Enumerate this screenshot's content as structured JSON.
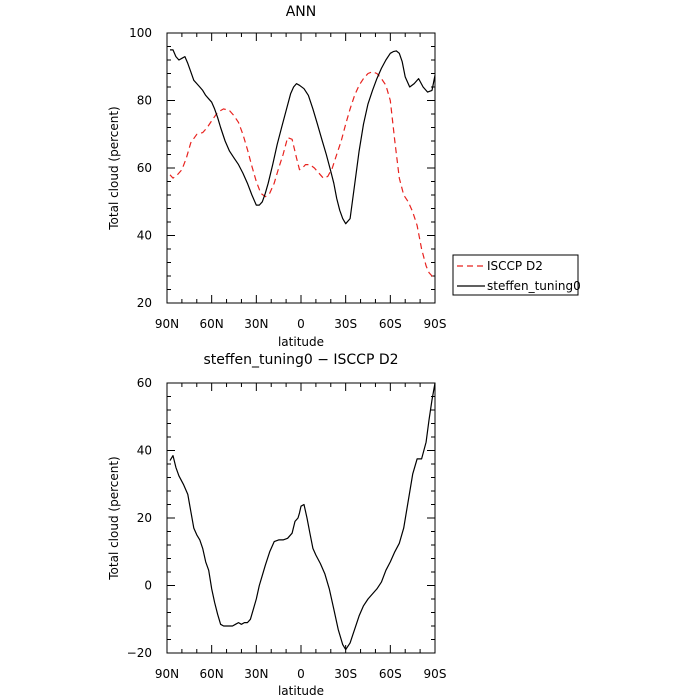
{
  "chart_data": [
    {
      "type": "line",
      "title": "ANN",
      "xlabel": "latitude",
      "ylabel": "Total cloud (percent)",
      "xlim": [
        -90,
        90
      ],
      "ylim": [
        20,
        100
      ],
      "x_ticks": [
        {
          "value": -90,
          "label": "90N"
        },
        {
          "value": -60,
          "label": "60N"
        },
        {
          "value": -30,
          "label": "30N"
        },
        {
          "value": 0,
          "label": "0"
        },
        {
          "value": 30,
          "label": "30S"
        },
        {
          "value": 60,
          "label": "60S"
        },
        {
          "value": 90,
          "label": "90S"
        }
      ],
      "y_ticks": [
        20,
        40,
        60,
        80,
        100
      ],
      "legend_position": "right",
      "series": [
        {
          "name": "ISCCP D2",
          "color": "#e8231f",
          "dash": "dashed",
          "x": [
            -88,
            -86,
            -83,
            -80,
            -77,
            -74,
            -70,
            -66,
            -63,
            -60,
            -56,
            -52,
            -48,
            -45,
            -42,
            -39,
            -36,
            -33,
            -30,
            -27,
            -24,
            -21,
            -18,
            -15,
            -12,
            -9,
            -6,
            -3,
            -1,
            1,
            3,
            6,
            9,
            12,
            15,
            18,
            21,
            24,
            27,
            30,
            33,
            36,
            39,
            42,
            45,
            48,
            51,
            54,
            57,
            60,
            63,
            66,
            69,
            72,
            75,
            78,
            81,
            84,
            86,
            88,
            90
          ],
          "y": [
            58.0,
            57.0,
            58.0,
            59.5,
            63.0,
            67.5,
            70.0,
            70.5,
            72.0,
            74.0,
            76.5,
            77.5,
            77.0,
            75.5,
            73.5,
            70.0,
            65.5,
            60.5,
            56.0,
            52.5,
            51.5,
            52.5,
            55.5,
            60.0,
            64.0,
            69.0,
            68.5,
            63.0,
            59.5,
            60.0,
            61.0,
            61.0,
            60.0,
            58.5,
            57.0,
            57.5,
            60.0,
            64.0,
            68.0,
            73.0,
            77.5,
            81.5,
            84.5,
            86.5,
            88.0,
            88.5,
            88.0,
            86.5,
            84.5,
            80.0,
            68.0,
            57.0,
            52.0,
            50.0,
            47.0,
            43.0,
            36.0,
            31.0,
            29.0,
            28.0,
            27.0
          ]
        },
        {
          "name": "steffen_tuning0",
          "color": "#000000",
          "dash": "solid",
          "x": [
            -88,
            -86,
            -84,
            -82,
            -80,
            -78,
            -76,
            -74,
            -72,
            -70,
            -68,
            -66,
            -64,
            -62,
            -60,
            -58,
            -56,
            -54,
            -51,
            -48,
            -45,
            -42,
            -39,
            -36,
            -33,
            -30,
            -28,
            -26,
            -24,
            -22,
            -19,
            -16,
            -13,
            -10,
            -7,
            -5,
            -3,
            -1,
            2,
            5,
            8,
            11,
            14,
            17,
            20,
            22,
            24,
            26,
            28,
            30,
            33,
            36,
            39,
            42,
            45,
            48,
            51,
            54,
            57,
            60,
            62,
            64,
            66,
            68,
            70,
            73,
            76,
            79,
            82,
            85,
            88,
            90
          ],
          "y": [
            95.0,
            95.0,
            93.0,
            92.0,
            92.5,
            93.0,
            91.0,
            88.5,
            86.0,
            85.0,
            84.0,
            83.0,
            81.5,
            80.5,
            79.5,
            77.5,
            75.0,
            72.0,
            68.0,
            65.0,
            63.0,
            61.0,
            58.5,
            55.5,
            52.0,
            49.0,
            49.0,
            50.0,
            52.5,
            55.5,
            61.0,
            67.0,
            72.0,
            77.0,
            82.0,
            84.0,
            85.0,
            84.5,
            83.5,
            81.5,
            77.5,
            73.0,
            68.5,
            64.0,
            59.0,
            55.5,
            51.0,
            47.5,
            45.0,
            43.5,
            45.0,
            55.0,
            65.0,
            73.0,
            79.0,
            83.0,
            86.5,
            89.5,
            92.0,
            94.0,
            94.5,
            94.7,
            94.0,
            91.5,
            87.0,
            84.0,
            85.0,
            86.5,
            84.0,
            82.5,
            83.0,
            87.5
          ]
        }
      ]
    },
    {
      "type": "line",
      "title": "steffen_tuning0 − ISCCP D2",
      "xlabel": "latitude",
      "ylabel": "Total cloud (percent)",
      "xlim": [
        -90,
        90
      ],
      "ylim": [
        -20,
        60
      ],
      "x_ticks": [
        {
          "value": -90,
          "label": "90N"
        },
        {
          "value": -60,
          "label": "60N"
        },
        {
          "value": -30,
          "label": "30N"
        },
        {
          "value": 0,
          "label": "0"
        },
        {
          "value": 30,
          "label": "30S"
        },
        {
          "value": 60,
          "label": "60S"
        },
        {
          "value": 90,
          "label": "90S"
        }
      ],
      "y_ticks": [
        -20,
        0,
        20,
        40,
        60
      ],
      "series": [
        {
          "color": "#000000",
          "dash": "solid",
          "x": [
            -88,
            -86,
            -84,
            -82,
            -79,
            -76,
            -74,
            -72,
            -70,
            -68,
            -66,
            -64,
            -62,
            -60,
            -58,
            -56,
            -54,
            -52,
            -50,
            -48,
            -46,
            -44,
            -42,
            -40,
            -38,
            -36,
            -34,
            -32,
            -30,
            -28,
            -26,
            -24,
            -21,
            -18,
            -15,
            -12,
            -9,
            -6,
            -4,
            -2,
            -1,
            0,
            2,
            4,
            6,
            8,
            10,
            13,
            16,
            19,
            22,
            25,
            28,
            30,
            33,
            36,
            39,
            42,
            45,
            48,
            51,
            54,
            57,
            60,
            63,
            66,
            69,
            72,
            75,
            78,
            81,
            84,
            86,
            88,
            90
          ],
          "y": [
            37.0,
            38.5,
            35.0,
            32.5,
            30.0,
            27.0,
            22.0,
            17.0,
            15.0,
            13.5,
            11.0,
            7.0,
            4.5,
            -1.0,
            -5.0,
            -8.5,
            -11.5,
            -12.0,
            -12.0,
            -12.0,
            -12.0,
            -11.5,
            -11.0,
            -11.5,
            -11.0,
            -11.0,
            -10.0,
            -7.0,
            -4.0,
            0.0,
            3.0,
            6.0,
            10.0,
            13.0,
            13.5,
            13.5,
            14.0,
            15.5,
            19.0,
            20.0,
            21.5,
            23.5,
            24.0,
            20.0,
            15.5,
            11.0,
            9.0,
            6.5,
            3.5,
            -1.0,
            -7.0,
            -13.0,
            -17.5,
            -19.0,
            -17.0,
            -13.0,
            -9.0,
            -6.0,
            -4.0,
            -2.5,
            -1.0,
            1.0,
            4.5,
            7.0,
            10.0,
            12.5,
            17.0,
            25.0,
            33.0,
            37.5,
            37.5,
            42.5,
            49.0,
            55.0,
            60.0
          ]
        }
      ]
    }
  ]
}
